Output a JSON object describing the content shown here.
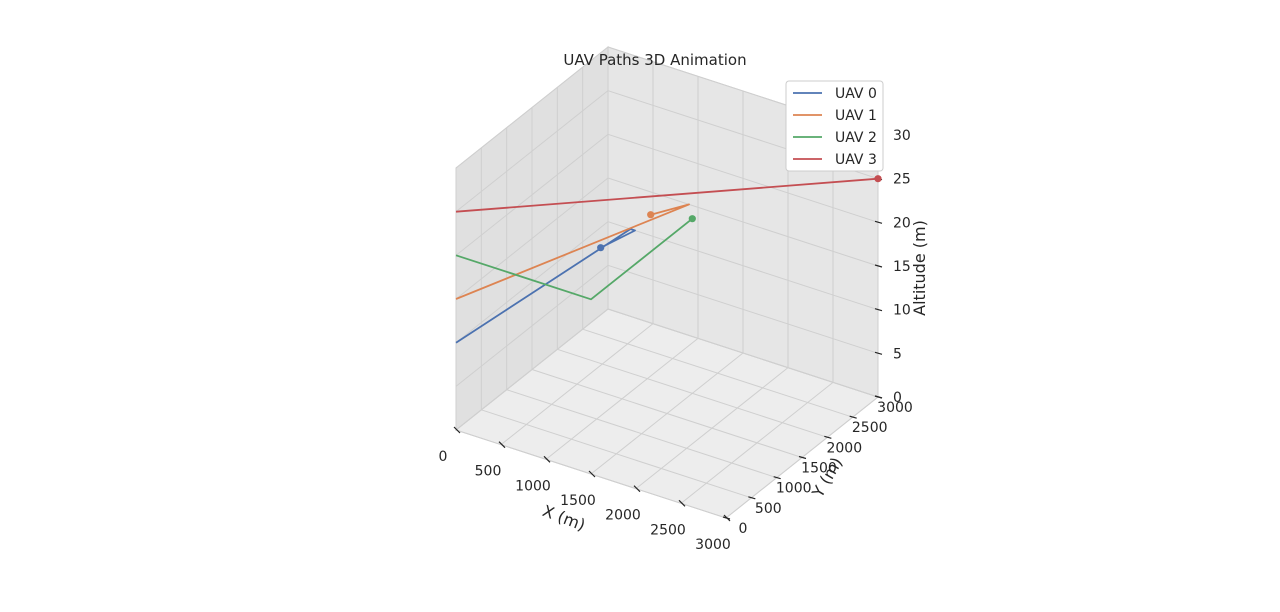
{
  "chart_data": {
    "type": "line3d",
    "title": "UAV Paths 3D Animation",
    "xlabel": "X (m)",
    "ylabel": "Y (m)",
    "zlabel": "Altitude (m)",
    "xlim": [
      0,
      3000
    ],
    "ylim": [
      0,
      3000
    ],
    "zlim": [
      0,
      30
    ],
    "xticks": [
      0,
      500,
      1000,
      1500,
      2000,
      2500,
      3000
    ],
    "yticks": [
      0,
      500,
      1000,
      1500,
      2000,
      2500,
      3000
    ],
    "zticks": [
      0,
      5,
      10,
      15,
      20,
      25,
      30
    ],
    "grid": true,
    "legend_position": "top-right",
    "series": [
      {
        "name": "UAV 0",
        "color": "#4c72b0",
        "points": [
          [
            0,
            0,
            10
          ],
          [
            250,
            3000,
            10
          ],
          [
            300,
            3000,
            10
          ],
          [
            200,
            2500,
            10
          ]
        ],
        "marker": [
          200,
          2500,
          10
        ]
      },
      {
        "name": "UAV 1",
        "color": "#dd8452",
        "points": [
          [
            0,
            0,
            15
          ],
          [
            900,
            3000,
            15
          ],
          [
            700,
            2600,
            15
          ]
        ],
        "marker": [
          700,
          2600,
          15
        ]
      },
      {
        "name": "UAV 2",
        "color": "#55a868",
        "points": [
          [
            0,
            0,
            20
          ],
          [
            1500,
            0,
            20
          ],
          [
            1500,
            2000,
            20
          ]
        ],
        "marker": [
          1500,
          2000,
          20
        ]
      },
      {
        "name": "UAV 3",
        "color": "#c44e52",
        "points": [
          [
            0,
            0,
            25
          ],
          [
            3000,
            3000,
            25
          ]
        ],
        "marker": [
          3000,
          3000,
          25
        ]
      }
    ]
  }
}
